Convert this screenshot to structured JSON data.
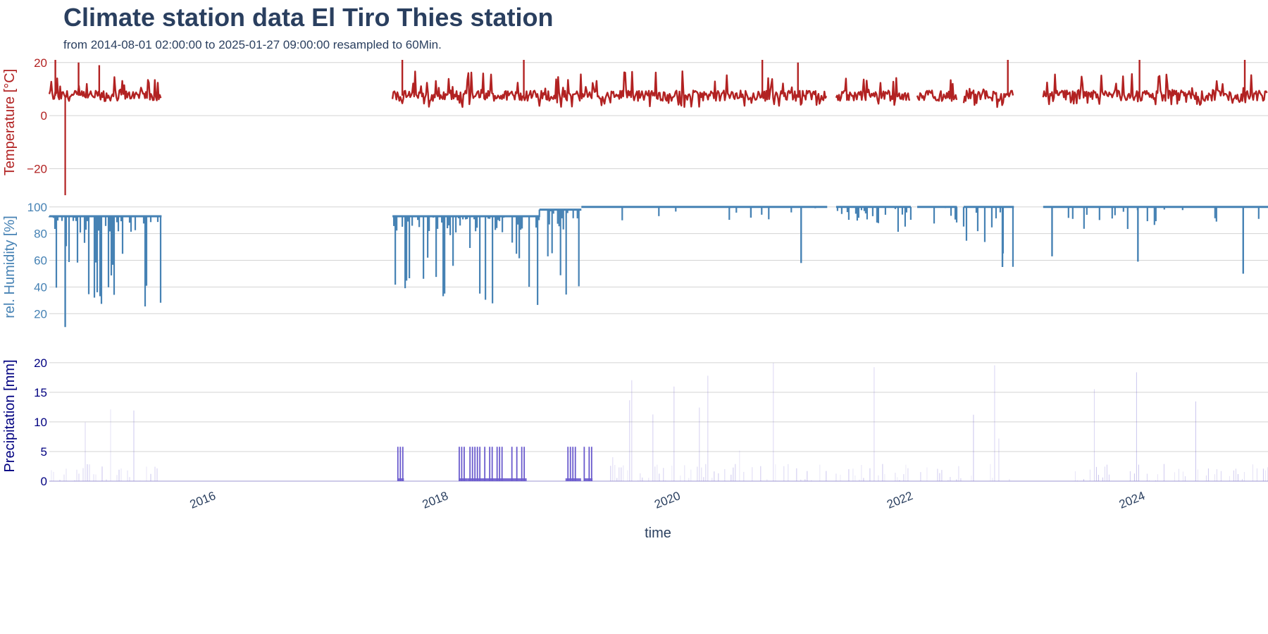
{
  "title": "Climate station data El Tiro Thies station",
  "subtitle": "from 2014-08-01 02:00:00 to 2025-01-27 09:00:00 resampled to 60Min.",
  "colors": {
    "temperature": "#b22222",
    "humidity": "#4682b4",
    "precipitation": "#6a5acd",
    "precip_axis": "#000080",
    "text": "#2a3f5f",
    "grid": "#d3d3d3"
  },
  "chart_data": {
    "type": "line",
    "x_axis": {
      "title": "time",
      "range": [
        "2014-08-01",
        "2025-01-27"
      ],
      "tick_labels": [
        "2016",
        "2018",
        "2020",
        "2022",
        "2024"
      ]
    },
    "panels": [
      {
        "id": "temperature",
        "type": "line",
        "ylabel": "Temperature [°C]",
        "ylim": [
          -26,
          21
        ],
        "tick_values": [
          20,
          0,
          -20
        ],
        "tick_labels": [
          "20",
          "0",
          "−20"
        ],
        "grid": true,
        "series": [
          {
            "segments": [
              {
                "start": "2014-08-01",
                "end": "2015-07-20",
                "base": 7.5,
                "lo": 5,
                "hi": 15,
                "spikes": [
                  [
                    "2014-08-20",
                    21
                  ],
                  [
                    "2014-11-01",
                    20
                  ],
                  [
                    "2015-01-05",
                    19
                  ]
                ],
                "dips": [
                  [
                    "2014-09-20",
                    -30
                  ]
                ]
              },
              {
                "start": "2017-07-15",
                "end": "2021-04-12",
                "base": 7.5,
                "lo": 3,
                "hi": 17,
                "spikes": [
                  [
                    "2017-08-15",
                    21
                  ],
                  [
                    "2018-09-01",
                    21
                  ],
                  [
                    "2020-09-20",
                    21
                  ],
                  [
                    "2021-01-10",
                    20
                  ]
                ],
                "dips": []
              },
              {
                "start": "2021-05-10",
                "end": "2021-12-31",
                "base": 7.5,
                "lo": 4,
                "hi": 15,
                "spikes": [],
                "dips": []
              },
              {
                "start": "2022-01-20",
                "end": "2022-05-25",
                "base": 7.5,
                "lo": 5,
                "hi": 15,
                "spikes": [],
                "dips": []
              },
              {
                "start": "2022-06-15",
                "end": "2022-11-20",
                "base": 7.5,
                "lo": 3,
                "hi": 15,
                "spikes": [
                  [
                    "2022-11-01",
                    22
                  ]
                ],
                "dips": []
              },
              {
                "start": "2023-02-20",
                "end": "2025-01-27",
                "base": 7.5,
                "lo": 4,
                "hi": 16,
                "spikes": [
                  [
                    "2023-12-20",
                    21
                  ],
                  [
                    "2024-11-15",
                    22
                  ]
                ],
                "dips": []
              }
            ]
          }
        ]
      },
      {
        "id": "humidity",
        "type": "line",
        "ylabel": "rel. Humidity [%]",
        "ylim": [
          8,
          102
        ],
        "tick_values": [
          100,
          80,
          60,
          40,
          20
        ],
        "tick_labels": [
          "100",
          "80",
          "60",
          "40",
          "20"
        ],
        "grid": true,
        "series": [
          {
            "segments": [
              {
                "start": "2014-08-01",
                "end": "2015-07-20",
                "base": 93,
                "min_dip": 23,
                "density": 0.55,
                "dips": [
                  [
                    "2014-09-20",
                    10
                  ]
                ]
              },
              {
                "start": "2017-07-15",
                "end": "2018-10-20",
                "base": 93,
                "min_dip": 23,
                "density": 0.6,
                "dips": []
              },
              {
                "start": "2018-10-20",
                "end": "2019-03-01",
                "base": 98,
                "min_dip": 26,
                "density": 0.5,
                "dips": []
              },
              {
                "start": "2019-03-01",
                "end": "2021-04-12",
                "base": 100,
                "min_dip": 90,
                "density": 0.05,
                "dips": [
                  [
                    "2021-01-20",
                    58
                  ],
                  [
                    "2020-08-15",
                    92
                  ]
                ]
              },
              {
                "start": "2021-05-10",
                "end": "2021-12-31",
                "base": 100,
                "min_dip": 80,
                "density": 0.25,
                "dips": []
              },
              {
                "start": "2022-01-20",
                "end": "2022-05-25",
                "base": 100,
                "min_dip": 82,
                "density": 0.15,
                "dips": []
              },
              {
                "start": "2022-06-15",
                "end": "2022-11-20",
                "base": 100,
                "min_dip": 55,
                "density": 0.35,
                "dips": [
                  [
                    "2022-10-15",
                    55
                  ]
                ]
              },
              {
                "start": "2023-02-20",
                "end": "2025-01-27",
                "base": 100,
                "min_dip": 80,
                "density": 0.1,
                "dips": [
                  [
                    "2023-03-20",
                    63
                  ],
                  [
                    "2023-12-15",
                    59
                  ],
                  [
                    "2024-11-10",
                    50
                  ]
                ]
              }
            ]
          }
        ]
      },
      {
        "id": "precipitation",
        "type": "bar",
        "ylabel": "Precipitation [mm]",
        "ylim": [
          0,
          22
        ],
        "tick_values": [
          20,
          15,
          10,
          5,
          0
        ],
        "tick_labels": [
          "20",
          "15",
          "10",
          "5",
          "0"
        ],
        "grid": true,
        "series": [
          {
            "faint_ranges": [
              [
                "2014-08-01",
                "2015-07-20"
              ],
              [
                "2019-06-01",
                "2021-04-12"
              ],
              [
                "2021-05-10",
                "2022-11-20"
              ],
              [
                "2023-06-01",
                "2025-01-27"
              ]
            ],
            "solid_blocks": [
              {
                "start": "2017-08-01",
                "end": "2017-08-20",
                "value": 5.8
              },
              {
                "start": "2018-02-10",
                "end": "2018-03-08",
                "value": 5.8
              },
              {
                "start": "2018-03-08",
                "end": "2018-09-10",
                "value": 5.8
              },
              {
                "start": "2019-01-10",
                "end": "2019-02-28",
                "value": 5.8
              },
              {
                "start": "2019-03-10",
                "end": "2019-04-05",
                "value": 5.8
              }
            ]
          }
        ]
      }
    ]
  }
}
